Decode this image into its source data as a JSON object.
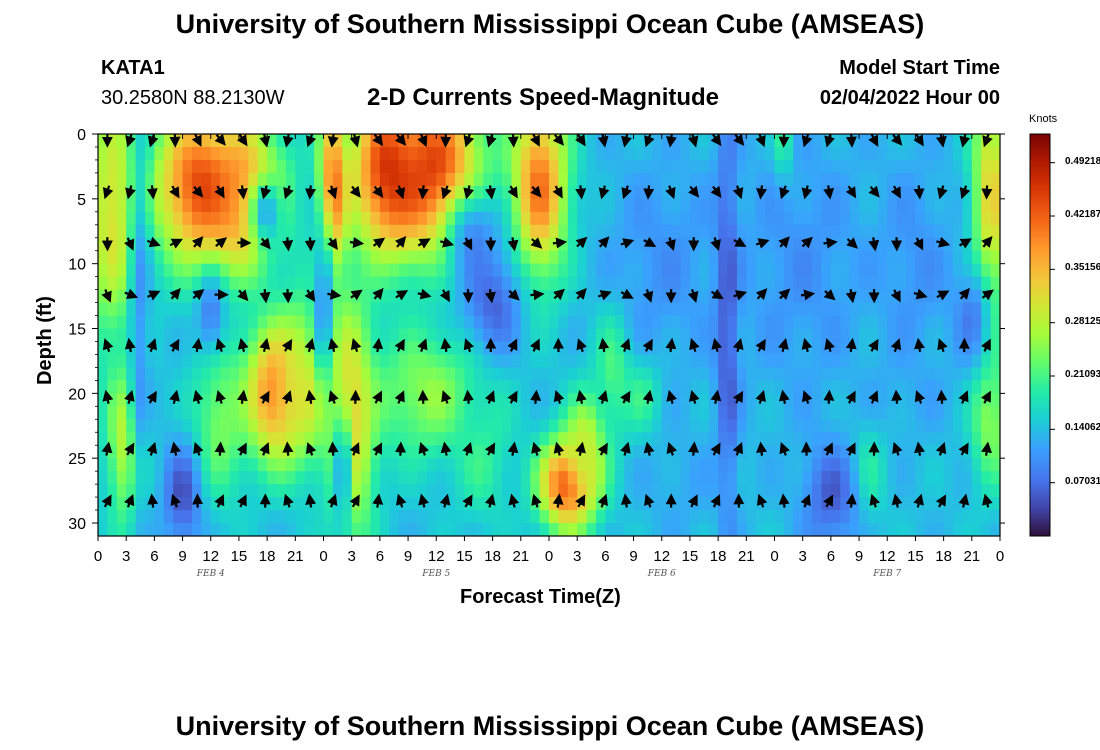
{
  "page": {
    "title": "University of Southern Mississippi Ocean Cube (AMSEAS)",
    "station": "KATA1",
    "coords": "30.2580N  88.2130W",
    "chart_title": "2-D Currents Speed-Magnitude",
    "model_start_label": "Model Start Time",
    "model_start_value": "02/04/2022 Hour 00",
    "footer_title": "University of Southern Mississippi Ocean Cube (AMSEAS)"
  },
  "chart_data": {
    "type": "heatmap",
    "title": "2-D Currents Speed-Magnitude",
    "xlabel": "Forecast Time(Z)",
    "ylabel": "Depth (ft)",
    "x_tick_labels": [
      "0",
      "3",
      "6",
      "9",
      "12",
      "15",
      "18",
      "21",
      "0",
      "3",
      "6",
      "9",
      "12",
      "15",
      "18",
      "21",
      "0",
      "3",
      "6",
      "9",
      "12",
      "15",
      "18",
      "21",
      "0",
      "3",
      "6",
      "9",
      "12",
      "15",
      "18",
      "21",
      "0"
    ],
    "x_range_hours": [
      0,
      96
    ],
    "date_labels": [
      {
        "label": "FEB 4",
        "hour": 12
      },
      {
        "label": "FEB 5",
        "hour": 36
      },
      {
        "label": "FEB 6",
        "hour": 60
      },
      {
        "label": "FEB 7",
        "hour": 84
      }
    ],
    "y_ticks": [
      "0",
      "5",
      "10",
      "15",
      "20",
      "25",
      "30"
    ],
    "y_range_ft": [
      0,
      31
    ],
    "colorbar": {
      "unit": "Knots",
      "range": [
        0.0,
        0.53
      ],
      "ticks": [
        "0.49218",
        "0.42187",
        "0.35156",
        "0.28125",
        "0.21093",
        "0.14062",
        "0.07031"
      ],
      "tick_values": [
        0.49218,
        0.42187,
        0.35156,
        0.28125,
        0.21093,
        0.14062,
        0.07031
      ]
    },
    "arrow_depths_ft": [
      0,
      4,
      8,
      12,
      16,
      20,
      24,
      28
    ],
    "arrow_step_hours": 2.4
  }
}
